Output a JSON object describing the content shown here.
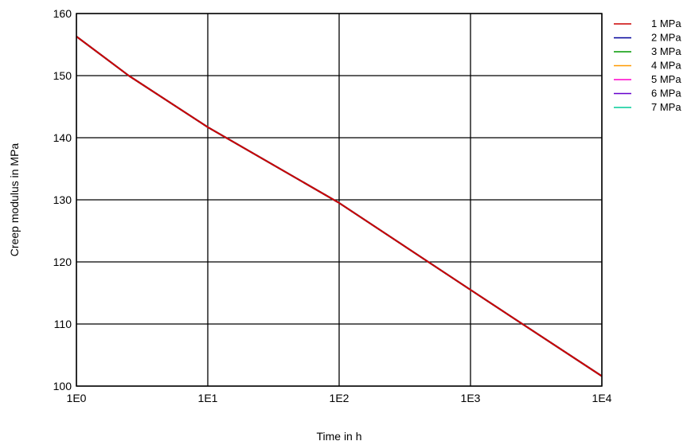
{
  "chart_data": {
    "type": "line",
    "title": "",
    "xlabel": "Time in h",
    "ylabel": "Creep modulus in MPa",
    "xscale": "log",
    "xlim": [
      1,
      10000
    ],
    "ylim": [
      100,
      160
    ],
    "grid": true,
    "legend_position": "top-right outside",
    "x_ticks": [
      {
        "value": 1,
        "label": "1E0"
      },
      {
        "value": 10,
        "label": "1E1"
      },
      {
        "value": 100,
        "label": "1E2"
      },
      {
        "value": 1000,
        "label": "1E3"
      },
      {
        "value": 10000,
        "label": "1E4"
      }
    ],
    "y_ticks": [
      {
        "value": 100,
        "label": "100"
      },
      {
        "value": 110,
        "label": "110"
      },
      {
        "value": 120,
        "label": "120"
      },
      {
        "value": 130,
        "label": "130"
      },
      {
        "value": 140,
        "label": "140"
      },
      {
        "value": 150,
        "label": "150"
      },
      {
        "value": 160,
        "label": "160"
      }
    ],
    "series": [
      {
        "name": "1 MPa",
        "color": "#cc0000",
        "x": [
          1,
          2.5,
          10,
          100,
          1000,
          10000
        ],
        "y": [
          156.3,
          150,
          141.7,
          129.5,
          115.5,
          101.6
        ]
      },
      {
        "name": "2 MPa",
        "color": "#000099",
        "x": [
          1,
          2.5,
          10,
          100,
          1000,
          10000
        ],
        "y": [
          156.3,
          150,
          141.7,
          129.5,
          115.5,
          101.6
        ]
      },
      {
        "name": "3 MPa",
        "color": "#009900",
        "x": [
          1,
          2.5,
          10,
          100,
          1000,
          10000
        ],
        "y": [
          156.3,
          150,
          141.7,
          129.5,
          115.5,
          101.6
        ]
      },
      {
        "name": "4 MPa",
        "color": "#ff9900",
        "x": [
          1,
          2.5,
          10,
          100,
          1000,
          10000
        ],
        "y": [
          156.3,
          150,
          141.7,
          129.5,
          115.5,
          101.6
        ]
      },
      {
        "name": "5 MPa",
        "color": "#ff00cc",
        "x": [
          1,
          2.5,
          10,
          100,
          1000,
          10000
        ],
        "y": [
          156.3,
          150,
          141.7,
          129.5,
          115.5,
          101.6
        ]
      },
      {
        "name": "6 MPa",
        "color": "#6600cc",
        "x": [
          1,
          2.5,
          10,
          100,
          1000,
          10000
        ],
        "y": [
          156.3,
          150,
          141.7,
          129.5,
          115.5,
          101.6
        ]
      },
      {
        "name": "7 MPa",
        "color": "#00cc99",
        "x": [
          1,
          2.5,
          10,
          100,
          1000,
          10000
        ],
        "y": [
          156.3,
          150,
          141.7,
          129.5,
          115.5,
          101.6
        ]
      }
    ]
  }
}
